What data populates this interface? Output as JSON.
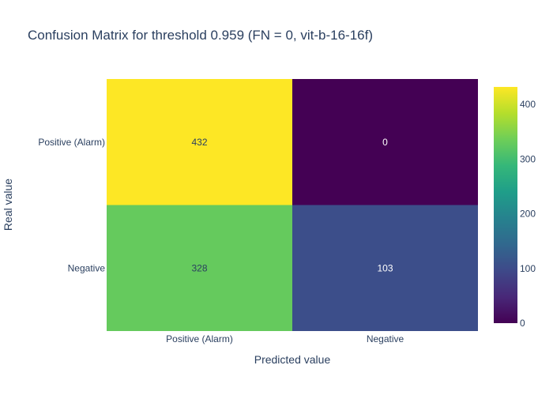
{
  "chart_data": {
    "type": "heatmap",
    "title": "Confusion Matrix for threshold 0.959 (FN = 0, vit-b-16-16f)",
    "xlabel": "Predicted value",
    "ylabel": "Real value",
    "x_categories": [
      "Positive (Alarm)",
      "Negative"
    ],
    "y_categories": [
      "Positive (Alarm)",
      "Negative"
    ],
    "values": [
      [
        432,
        0
      ],
      [
        328,
        103
      ]
    ],
    "colorscale": "viridis",
    "zlim": [
      0,
      432
    ],
    "colorbar": {
      "ticks": [
        0,
        100,
        200,
        300,
        400
      ]
    }
  }
}
